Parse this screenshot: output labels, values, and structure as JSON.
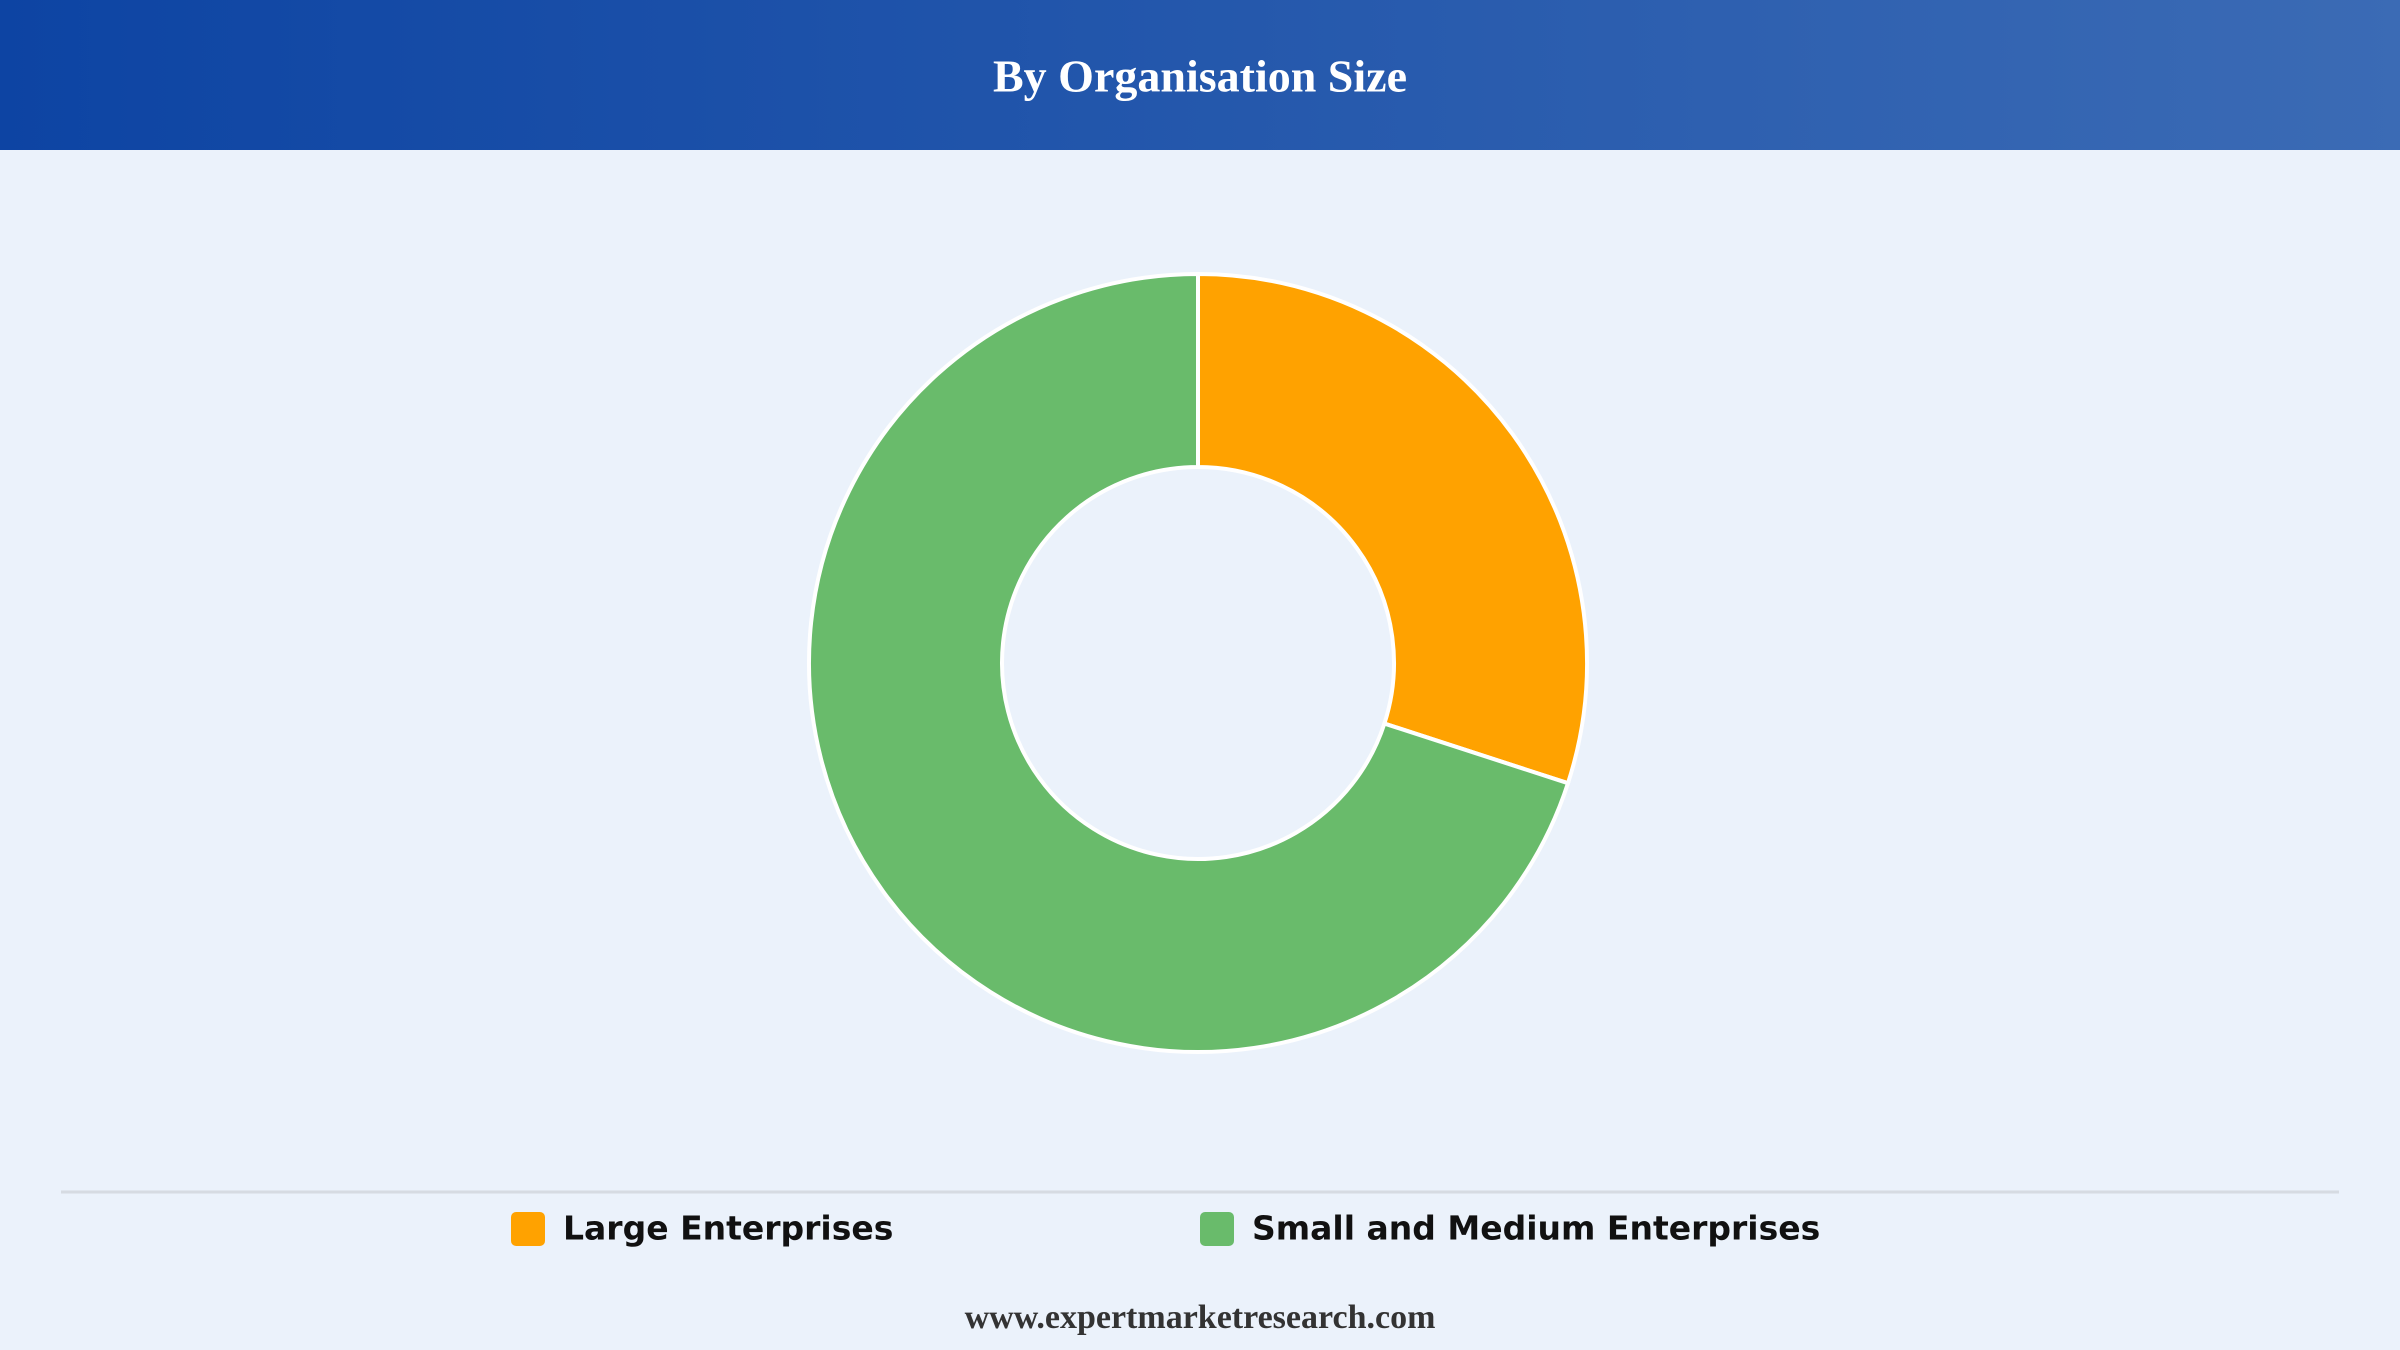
{
  "chart_data": {
    "type": "donut",
    "title": "By Organisation Size",
    "categories": [
      "Large Enterprises",
      "Small and Medium Enterprises"
    ],
    "values": [
      30,
      70
    ],
    "colors": [
      "#ffa200",
      "#69bb6b"
    ]
  },
  "footer": "www.expertmarketresearch.com"
}
